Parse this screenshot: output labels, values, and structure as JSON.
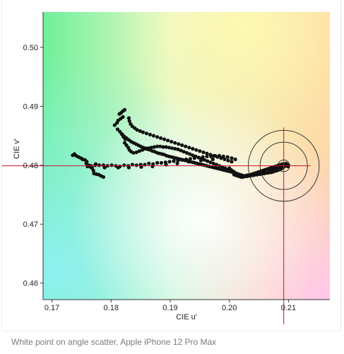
{
  "caption": "White point on angle scatter, Apple iPhone 12 Pro Max",
  "chart_data": {
    "type": "scatter",
    "title": "",
    "xlabel": "CIE u'",
    "ylabel": "CIE v'",
    "xlim": [
      0.1685,
      0.217
    ],
    "ylim": [
      0.4572,
      0.506
    ],
    "xticks": [
      0.17,
      0.18,
      0.19,
      0.2,
      0.21
    ],
    "yticks": [
      0.46,
      0.47,
      0.48,
      0.49,
      0.5
    ],
    "xtick_labels": [
      "0.17",
      "0.18",
      "0.19",
      "0.20",
      "0.21"
    ],
    "ytick_labels": [
      "0.46",
      "0.47",
      "0.48",
      "0.49",
      "0.50"
    ],
    "grid": false,
    "background": "u'v' chromaticity color gradient",
    "target": {
      "u": 0.2092,
      "v": 0.4799,
      "ring_radii": [
        0.001,
        0.004,
        0.006
      ]
    },
    "crosshair": {
      "color": "#c8102e",
      "u": 0.2092,
      "v": 0.4799
    },
    "point_color": "#111111",
    "series": [
      {
        "points": [
          [
            0.1735,
            0.4817
          ],
          [
            0.1738,
            0.4819
          ],
          [
            0.1741,
            0.4816
          ],
          [
            0.1745,
            0.4814
          ],
          [
            0.1749,
            0.4812
          ],
          [
            0.1752,
            0.481
          ],
          [
            0.1756,
            0.4809
          ],
          [
            0.1759,
            0.4806
          ],
          [
            0.1758,
            0.4803
          ],
          [
            0.1762,
            0.48
          ],
          [
            0.1765,
            0.4797
          ],
          [
            0.1768,
            0.4795
          ],
          [
            0.177,
            0.4791
          ],
          [
            0.1771,
            0.4786
          ],
          [
            0.1775,
            0.4785
          ],
          [
            0.1779,
            0.4784
          ],
          [
            0.1783,
            0.4782
          ],
          [
            0.1787,
            0.478
          ],
          [
            0.176,
            0.4798
          ],
          [
            0.1766,
            0.4799
          ],
          [
            0.1773,
            0.48
          ],
          [
            0.178,
            0.48
          ],
          [
            0.1787,
            0.48
          ],
          [
            0.1794,
            0.4799
          ],
          [
            0.1801,
            0.48
          ],
          [
            0.1808,
            0.4799
          ],
          [
            0.1815,
            0.4798
          ],
          [
            0.1822,
            0.48
          ],
          [
            0.1829,
            0.4799
          ],
          [
            0.1836,
            0.4801
          ],
          [
            0.1843,
            0.48
          ],
          [
            0.185,
            0.4801
          ],
          [
            0.1857,
            0.4801
          ],
          [
            0.1864,
            0.4803
          ],
          [
            0.1871,
            0.4802
          ],
          [
            0.1878,
            0.4804
          ],
          [
            0.1885,
            0.4804
          ],
          [
            0.1892,
            0.4805
          ],
          [
            0.1899,
            0.4806
          ],
          [
            0.1906,
            0.4807
          ],
          [
            0.1913,
            0.4808
          ],
          [
            0.192,
            0.4809
          ],
          [
            0.1927,
            0.481
          ],
          [
            0.1934,
            0.4811
          ],
          [
            0.1941,
            0.4812
          ],
          [
            0.1948,
            0.4813
          ],
          [
            0.1955,
            0.4814
          ],
          [
            0.1962,
            0.4815
          ],
          [
            0.1969,
            0.4815
          ],
          [
            0.1976,
            0.4816
          ],
          [
            0.1983,
            0.4816
          ],
          [
            0.199,
            0.4815
          ],
          [
            0.1997,
            0.4814
          ],
          [
            0.2004,
            0.4812
          ],
          [
            0.201,
            0.481
          ],
          [
            0.1774,
            0.4802
          ],
          [
            0.1789,
            0.4796
          ],
          [
            0.1812,
            0.4796
          ],
          [
            0.183,
            0.4796
          ],
          [
            0.1851,
            0.4797
          ],
          [
            0.187,
            0.4798
          ],
          [
            0.1893,
            0.4801
          ],
          [
            0.1912,
            0.4803
          ],
          [
            0.1931,
            0.4806
          ],
          [
            0.1952,
            0.4808
          ],
          [
            0.1972,
            0.481
          ],
          [
            0.1806,
            0.4868
          ],
          [
            0.181,
            0.4872
          ],
          [
            0.1812,
            0.4876
          ],
          [
            0.1816,
            0.4879
          ],
          [
            0.182,
            0.4882
          ],
          [
            0.1814,
            0.4887
          ],
          [
            0.1817,
            0.4889
          ],
          [
            0.182,
            0.4892
          ],
          [
            0.1823,
            0.4894
          ],
          [
            0.1811,
            0.4861
          ],
          [
            0.1815,
            0.4857
          ],
          [
            0.1818,
            0.4853
          ],
          [
            0.1822,
            0.4849
          ],
          [
            0.1826,
            0.4846
          ],
          [
            0.183,
            0.4843
          ],
          [
            0.1834,
            0.484
          ],
          [
            0.1838,
            0.4838
          ],
          [
            0.1842,
            0.4836
          ],
          [
            0.1846,
            0.4834
          ],
          [
            0.185,
            0.4832
          ],
          [
            0.1854,
            0.483
          ],
          [
            0.1858,
            0.4829
          ],
          [
            0.1862,
            0.4827
          ],
          [
            0.1866,
            0.4826
          ],
          [
            0.187,
            0.4824
          ],
          [
            0.1874,
            0.4823
          ],
          [
            0.1878,
            0.4821
          ],
          [
            0.1882,
            0.482
          ],
          [
            0.1886,
            0.4819
          ],
          [
            0.189,
            0.4818
          ],
          [
            0.1894,
            0.4816
          ],
          [
            0.1898,
            0.4815
          ],
          [
            0.1902,
            0.4814
          ],
          [
            0.1906,
            0.4813
          ],
          [
            0.191,
            0.4812
          ],
          [
            0.1914,
            0.4811
          ],
          [
            0.1918,
            0.481
          ],
          [
            0.1922,
            0.4809
          ],
          [
            0.1926,
            0.4808
          ],
          [
            0.193,
            0.4807
          ],
          [
            0.1934,
            0.4806
          ],
          [
            0.1938,
            0.4805
          ],
          [
            0.1942,
            0.4804
          ],
          [
            0.1946,
            0.4803
          ],
          [
            0.195,
            0.4802
          ],
          [
            0.1954,
            0.4801
          ],
          [
            0.1958,
            0.48
          ],
          [
            0.1962,
            0.4799
          ],
          [
            0.1966,
            0.4798
          ],
          [
            0.197,
            0.4797
          ],
          [
            0.1974,
            0.4796
          ],
          [
            0.1978,
            0.4795
          ],
          [
            0.1982,
            0.4794
          ],
          [
            0.1986,
            0.4793
          ],
          [
            0.199,
            0.4792
          ],
          [
            0.1994,
            0.4791
          ],
          [
            0.1998,
            0.479
          ],
          [
            0.2002,
            0.4789
          ],
          [
            0.2006,
            0.4788
          ],
          [
            0.1819,
            0.4852
          ],
          [
            0.1821,
            0.4848
          ],
          [
            0.1824,
            0.4844
          ],
          [
            0.1823,
            0.4838
          ],
          [
            0.1826,
            0.4834
          ],
          [
            0.1829,
            0.483
          ],
          [
            0.1831,
            0.4826
          ],
          [
            0.1834,
            0.4823
          ],
          [
            0.1838,
            0.4821
          ],
          [
            0.1843,
            0.4822
          ],
          [
            0.1848,
            0.4824
          ],
          [
            0.1853,
            0.4826
          ],
          [
            0.1858,
            0.4828
          ],
          [
            0.1863,
            0.4829
          ],
          [
            0.1868,
            0.483
          ],
          [
            0.1873,
            0.4831
          ],
          [
            0.1878,
            0.4832
          ],
          [
            0.1883,
            0.4832
          ],
          [
            0.1888,
            0.4831
          ],
          [
            0.1893,
            0.4831
          ],
          [
            0.1898,
            0.483
          ],
          [
            0.1903,
            0.4829
          ],
          [
            0.1908,
            0.4828
          ],
          [
            0.1913,
            0.4827
          ],
          [
            0.1918,
            0.4825
          ],
          [
            0.1923,
            0.4823
          ],
          [
            0.1928,
            0.4821
          ],
          [
            0.1933,
            0.4819
          ],
          [
            0.1938,
            0.4817
          ],
          [
            0.1943,
            0.4815
          ],
          [
            0.1948,
            0.4813
          ],
          [
            0.1953,
            0.4811
          ],
          [
            0.1958,
            0.4809
          ],
          [
            0.1963,
            0.4807
          ],
          [
            0.1968,
            0.4805
          ],
          [
            0.1973,
            0.4803
          ],
          [
            0.1978,
            0.4801
          ],
          [
            0.1983,
            0.4799
          ],
          [
            0.1988,
            0.4797
          ],
          [
            0.1993,
            0.4795
          ],
          [
            0.1998,
            0.4793
          ],
          [
            0.183,
            0.488
          ],
          [
            0.1831,
            0.4875
          ],
          [
            0.1833,
            0.487
          ],
          [
            0.1836,
            0.4866
          ],
          [
            0.184,
            0.4863
          ],
          [
            0.1844,
            0.486
          ],
          [
            0.1849,
            0.4858
          ],
          [
            0.1854,
            0.4856
          ],
          [
            0.186,
            0.4854
          ],
          [
            0.1866,
            0.4852
          ],
          [
            0.1872,
            0.485
          ],
          [
            0.1878,
            0.4848
          ],
          [
            0.1884,
            0.4846
          ],
          [
            0.189,
            0.4844
          ],
          [
            0.1896,
            0.4842
          ],
          [
            0.1902,
            0.484
          ],
          [
            0.1908,
            0.4838
          ],
          [
            0.1914,
            0.4836
          ],
          [
            0.192,
            0.4834
          ],
          [
            0.1926,
            0.4832
          ],
          [
            0.1932,
            0.483
          ],
          [
            0.1938,
            0.4828
          ],
          [
            0.1944,
            0.4826
          ],
          [
            0.195,
            0.4824
          ],
          [
            0.1956,
            0.4822
          ],
          [
            0.1962,
            0.482
          ],
          [
            0.1968,
            0.4818
          ],
          [
            0.1974,
            0.4816
          ],
          [
            0.198,
            0.4814
          ],
          [
            0.1986,
            0.4812
          ],
          [
            0.1992,
            0.481
          ],
          [
            0.1998,
            0.4808
          ],
          [
            0.2004,
            0.4806
          ],
          [
            0.2,
            0.4795
          ],
          [
            0.2003,
            0.4792
          ],
          [
            0.2006,
            0.479
          ],
          [
            0.2009,
            0.4788
          ],
          [
            0.2012,
            0.4786
          ],
          [
            0.2015,
            0.4785
          ],
          [
            0.2018,
            0.4784
          ],
          [
            0.2021,
            0.4783
          ],
          [
            0.2024,
            0.4782
          ],
          [
            0.2027,
            0.4782
          ],
          [
            0.203,
            0.4783
          ],
          [
            0.2033,
            0.4783
          ],
          [
            0.2036,
            0.4784
          ],
          [
            0.2039,
            0.4785
          ],
          [
            0.2042,
            0.4786
          ],
          [
            0.2045,
            0.4787
          ],
          [
            0.2048,
            0.4788
          ],
          [
            0.2051,
            0.4789
          ],
          [
            0.2054,
            0.479
          ],
          [
            0.2057,
            0.4791
          ],
          [
            0.206,
            0.4792
          ],
          [
            0.2063,
            0.4793
          ],
          [
            0.2066,
            0.4794
          ],
          [
            0.2069,
            0.4795
          ],
          [
            0.2072,
            0.4796
          ],
          [
            0.2075,
            0.4797
          ],
          [
            0.2078,
            0.4798
          ],
          [
            0.2081,
            0.4799
          ],
          [
            0.2084,
            0.48
          ],
          [
            0.2087,
            0.4801
          ],
          [
            0.209,
            0.4802
          ],
          [
            0.2093,
            0.4802
          ],
          [
            0.2096,
            0.4803
          ],
          [
            0.2092,
            0.4797
          ],
          [
            0.2089,
            0.4795
          ],
          [
            0.2086,
            0.4793
          ],
          [
            0.2083,
            0.4792
          ],
          [
            0.208,
            0.4791
          ],
          [
            0.2077,
            0.479
          ],
          [
            0.2074,
            0.4789
          ],
          [
            0.2071,
            0.4788
          ],
          [
            0.2068,
            0.4788
          ],
          [
            0.2065,
            0.4787
          ],
          [
            0.2062,
            0.4787
          ],
          [
            0.2059,
            0.4786
          ],
          [
            0.2056,
            0.4786
          ],
          [
            0.2053,
            0.4785
          ],
          [
            0.205,
            0.4785
          ],
          [
            0.2047,
            0.4784
          ],
          [
            0.2044,
            0.4784
          ],
          [
            0.2041,
            0.4783
          ],
          [
            0.2038,
            0.4783
          ],
          [
            0.2035,
            0.4782
          ],
          [
            0.2032,
            0.4782
          ],
          [
            0.2029,
            0.4781
          ],
          [
            0.2026,
            0.4781
          ],
          [
            0.2023,
            0.478
          ],
          [
            0.202,
            0.478
          ],
          [
            0.2017,
            0.4781
          ],
          [
            0.2014,
            0.4782
          ],
          [
            0.2011,
            0.4783
          ],
          [
            0.2008,
            0.4784
          ],
          [
            0.2096,
            0.4799
          ],
          [
            0.2098,
            0.4801
          ],
          [
            0.2099,
            0.4798
          ],
          [
            0.21,
            0.48
          ],
          [
            0.2094,
            0.48
          ],
          [
            0.2091,
            0.4799
          ],
          [
            0.2088,
            0.4798
          ],
          [
            0.2085,
            0.4797
          ],
          [
            0.2082,
            0.4796
          ],
          [
            0.2079,
            0.4795
          ],
          [
            0.2076,
            0.4794
          ],
          [
            0.2073,
            0.4793
          ],
          [
            0.207,
            0.4792
          ],
          [
            0.2067,
            0.4791
          ]
        ]
      }
    ]
  }
}
